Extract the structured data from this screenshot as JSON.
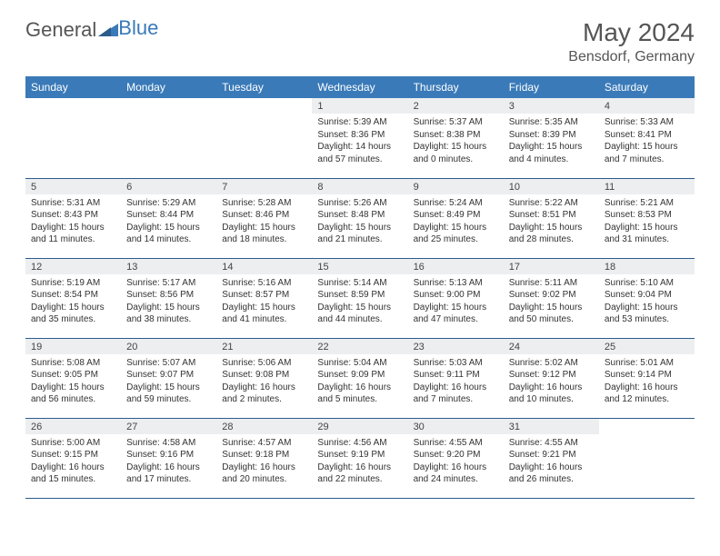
{
  "logo": {
    "part1": "General",
    "part2": "Blue"
  },
  "title": "May 2024",
  "location": "Bensdorf, Germany",
  "weekdays": [
    "Sunday",
    "Monday",
    "Tuesday",
    "Wednesday",
    "Thursday",
    "Friday",
    "Saturday"
  ],
  "colors": {
    "header_bg": "#3a7ab8",
    "header_text": "#ffffff",
    "daynum_bg": "#eceef0",
    "border": "#2b5c8a",
    "text": "#333333",
    "logo_gray": "#555555",
    "logo_blue": "#3a7ab8"
  },
  "weeks": [
    [
      {
        "empty": true
      },
      {
        "empty": true
      },
      {
        "empty": true
      },
      {
        "n": "1",
        "sunrise": "5:39 AM",
        "sunset": "8:36 PM",
        "daylight": "14 hours and 57 minutes."
      },
      {
        "n": "2",
        "sunrise": "5:37 AM",
        "sunset": "8:38 PM",
        "daylight": "15 hours and 0 minutes."
      },
      {
        "n": "3",
        "sunrise": "5:35 AM",
        "sunset": "8:39 PM",
        "daylight": "15 hours and 4 minutes."
      },
      {
        "n": "4",
        "sunrise": "5:33 AM",
        "sunset": "8:41 PM",
        "daylight": "15 hours and 7 minutes."
      }
    ],
    [
      {
        "n": "5",
        "sunrise": "5:31 AM",
        "sunset": "8:43 PM",
        "daylight": "15 hours and 11 minutes."
      },
      {
        "n": "6",
        "sunrise": "5:29 AM",
        "sunset": "8:44 PM",
        "daylight": "15 hours and 14 minutes."
      },
      {
        "n": "7",
        "sunrise": "5:28 AM",
        "sunset": "8:46 PM",
        "daylight": "15 hours and 18 minutes."
      },
      {
        "n": "8",
        "sunrise": "5:26 AM",
        "sunset": "8:48 PM",
        "daylight": "15 hours and 21 minutes."
      },
      {
        "n": "9",
        "sunrise": "5:24 AM",
        "sunset": "8:49 PM",
        "daylight": "15 hours and 25 minutes."
      },
      {
        "n": "10",
        "sunrise": "5:22 AM",
        "sunset": "8:51 PM",
        "daylight": "15 hours and 28 minutes."
      },
      {
        "n": "11",
        "sunrise": "5:21 AM",
        "sunset": "8:53 PM",
        "daylight": "15 hours and 31 minutes."
      }
    ],
    [
      {
        "n": "12",
        "sunrise": "5:19 AM",
        "sunset": "8:54 PM",
        "daylight": "15 hours and 35 minutes."
      },
      {
        "n": "13",
        "sunrise": "5:17 AM",
        "sunset": "8:56 PM",
        "daylight": "15 hours and 38 minutes."
      },
      {
        "n": "14",
        "sunrise": "5:16 AM",
        "sunset": "8:57 PM",
        "daylight": "15 hours and 41 minutes."
      },
      {
        "n": "15",
        "sunrise": "5:14 AM",
        "sunset": "8:59 PM",
        "daylight": "15 hours and 44 minutes."
      },
      {
        "n": "16",
        "sunrise": "5:13 AM",
        "sunset": "9:00 PM",
        "daylight": "15 hours and 47 minutes."
      },
      {
        "n": "17",
        "sunrise": "5:11 AM",
        "sunset": "9:02 PM",
        "daylight": "15 hours and 50 minutes."
      },
      {
        "n": "18",
        "sunrise": "5:10 AM",
        "sunset": "9:04 PM",
        "daylight": "15 hours and 53 minutes."
      }
    ],
    [
      {
        "n": "19",
        "sunrise": "5:08 AM",
        "sunset": "9:05 PM",
        "daylight": "15 hours and 56 minutes."
      },
      {
        "n": "20",
        "sunrise": "5:07 AM",
        "sunset": "9:07 PM",
        "daylight": "15 hours and 59 minutes."
      },
      {
        "n": "21",
        "sunrise": "5:06 AM",
        "sunset": "9:08 PM",
        "daylight": "16 hours and 2 minutes."
      },
      {
        "n": "22",
        "sunrise": "5:04 AM",
        "sunset": "9:09 PM",
        "daylight": "16 hours and 5 minutes."
      },
      {
        "n": "23",
        "sunrise": "5:03 AM",
        "sunset": "9:11 PM",
        "daylight": "16 hours and 7 minutes."
      },
      {
        "n": "24",
        "sunrise": "5:02 AM",
        "sunset": "9:12 PM",
        "daylight": "16 hours and 10 minutes."
      },
      {
        "n": "25",
        "sunrise": "5:01 AM",
        "sunset": "9:14 PM",
        "daylight": "16 hours and 12 minutes."
      }
    ],
    [
      {
        "n": "26",
        "sunrise": "5:00 AM",
        "sunset": "9:15 PM",
        "daylight": "16 hours and 15 minutes."
      },
      {
        "n": "27",
        "sunrise": "4:58 AM",
        "sunset": "9:16 PM",
        "daylight": "16 hours and 17 minutes."
      },
      {
        "n": "28",
        "sunrise": "4:57 AM",
        "sunset": "9:18 PM",
        "daylight": "16 hours and 20 minutes."
      },
      {
        "n": "29",
        "sunrise": "4:56 AM",
        "sunset": "9:19 PM",
        "daylight": "16 hours and 22 minutes."
      },
      {
        "n": "30",
        "sunrise": "4:55 AM",
        "sunset": "9:20 PM",
        "daylight": "16 hours and 24 minutes."
      },
      {
        "n": "31",
        "sunrise": "4:55 AM",
        "sunset": "9:21 PM",
        "daylight": "16 hours and 26 minutes."
      },
      {
        "empty": true
      }
    ]
  ],
  "labels": {
    "sunrise": "Sunrise:",
    "sunset": "Sunset:",
    "daylight": "Daylight:"
  }
}
